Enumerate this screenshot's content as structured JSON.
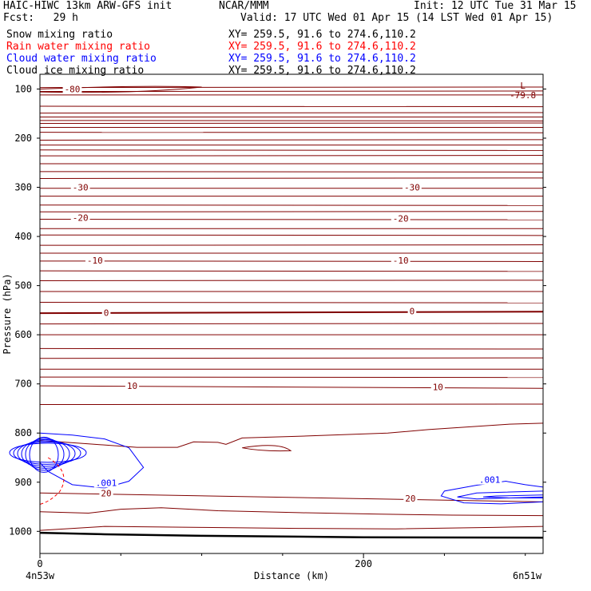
{
  "header": {
    "title": "HAIC-HIWC 13km ARW-GFS init",
    "org": "NCAR/MMM",
    "init": "Init: 12 UTC Tue 31 Mar 15",
    "fcst": "Fcst:   29 h",
    "valid": "Valid: 17 UTC Wed 01 Apr 15 (14 LST Wed 01 Apr 15)"
  },
  "legend": [
    {
      "label": "Snow mixing ratio",
      "xy": "XY= 259.5, 91.6 to 274.6,110.2",
      "color": "#000000"
    },
    {
      "label": "Rain water mixing ratio",
      "xy": "XY= 259.5, 91.6 to 274.6,110.2",
      "color": "#ff0000"
    },
    {
      "label": "Cloud water mixing ratio",
      "xy": "XY= 259.5, 91.6 to 274.6,110.2",
      "color": "#0000ff"
    },
    {
      "label": "Cloud ice mixing ratio",
      "xy": "XY= 259.5, 91.6 to 274.6,110.2",
      "color": "#000000"
    }
  ],
  "chart_data": {
    "type": "line",
    "xlabel": "Distance (km)",
    "ylabel": "Pressure (hPa)",
    "xlim": [
      0,
      311
    ],
    "ylim": [
      1045,
      70
    ],
    "x_ticks": [
      0,
      200
    ],
    "y_ticks": [
      100,
      200,
      300,
      400,
      500,
      600,
      700,
      800,
      900,
      1000
    ],
    "x_start_label": "4n53w",
    "x_end_label": "6n51w",
    "grid": false,
    "temperature_contour_color": "#800000",
    "temperature_contours": [
      {
        "label": "-80",
        "p": [
          105,
          104
        ]
      },
      {
        "label": "-30",
        "p": [
          302,
          302
        ]
      },
      {
        "label": "-20",
        "p": [
          365,
          366
        ]
      },
      {
        "label": "-10",
        "p": [
          450,
          451
        ]
      },
      {
        "label": "0",
        "p": [
          556,
          553
        ]
      },
      {
        "label": "10",
        "p": [
          704,
          709
        ]
      },
      {
        "label": "20",
        "p": [
          922,
          940
        ]
      }
    ],
    "temperature_labels": [
      {
        "text": "-80",
        "x": 20,
        "p": 100
      },
      {
        "text": "-30",
        "x": 25,
        "p": 300
      },
      {
        "text": "-20",
        "x": 25,
        "p": 362
      },
      {
        "text": "-10",
        "x": 34,
        "p": 449
      },
      {
        "text": "0",
        "x": 41,
        "p": 555
      },
      {
        "text": "10",
        "x": 57,
        "p": 704
      },
      {
        "text": "20",
        "x": 41,
        "p": 922
      },
      {
        "text": "-30",
        "x": 230,
        "p": 300
      },
      {
        "text": "-20",
        "x": 223,
        "p": 363
      },
      {
        "text": "-10",
        "x": 223,
        "p": 449
      },
      {
        "text": "0",
        "x": 230,
        "p": 552
      },
      {
        "text": "10",
        "x": 246,
        "p": 706
      },
      {
        "text": "20",
        "x": 229,
        "p": 933
      }
    ],
    "extremum": {
      "marker": "L",
      "value": "-79.8",
      "x": 297,
      "p": 98
    },
    "cloud_water_color": "#0000ff",
    "cloud_water_labels": [
      {
        "text": ".001",
        "x": 41,
        "p": 901
      },
      {
        "text": ".001",
        "x": 278,
        "p": 895
      }
    ],
    "rain_water_color": "#ff0000",
    "ground_color": "#000000"
  }
}
